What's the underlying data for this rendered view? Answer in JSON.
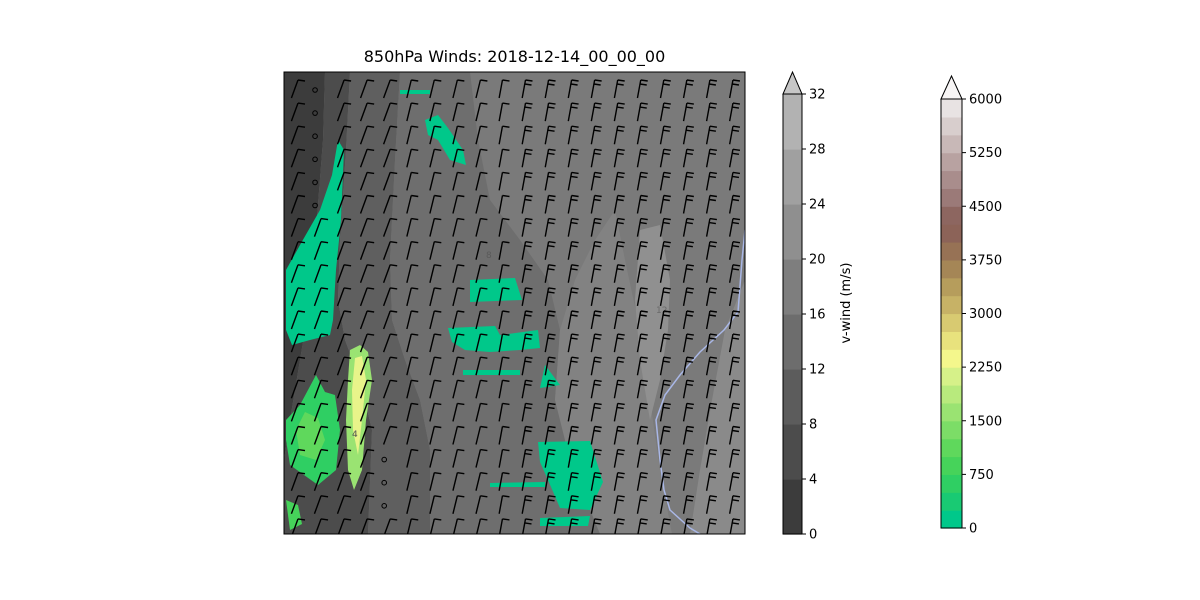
{
  "chart_data": {
    "type": "heatmap",
    "title": "850hPa Winds: 2018-12-14_00_00_00",
    "map": {
      "description_in_pixels": "wind barbs over gray v-wind shading with green terrain overlay",
      "contour_labels": [
        "4",
        "8",
        "12"
      ]
    },
    "vwind_colorbar": {
      "label": "v-wind (m/s)",
      "levels": [
        0,
        4,
        8,
        12,
        16,
        20,
        24,
        28,
        32
      ],
      "tick_labels": [
        "0",
        "4",
        "8",
        "12",
        "16",
        "20",
        "24",
        "28",
        "32"
      ],
      "extend": "max",
      "colors": [
        "#3c3c3c",
        "#4c4c4c",
        "#5c5c5c",
        "#6d6d6d",
        "#7e7e7e",
        "#8f8f8f",
        "#a0a0a0",
        "#b2b2b2",
        "#c6c6c6"
      ]
    },
    "terrain_colorbar": {
      "label": "",
      "levels": [
        0,
        250,
        500,
        750,
        1000,
        1250,
        1500,
        1750,
        2000,
        2250,
        2500,
        2750,
        3000,
        3250,
        3500,
        3750,
        4000,
        4250,
        4500,
        4750,
        5000,
        5250,
        5500,
        5750,
        6000
      ],
      "tick_values": [
        0,
        750,
        1500,
        2250,
        3000,
        3750,
        4500,
        5250,
        6000
      ],
      "tick_labels": [
        "0",
        "750",
        "1500",
        "2250",
        "3000",
        "3750",
        "4500",
        "5250",
        "6000"
      ],
      "extend": "max",
      "colors": [
        "#00c88a",
        "#19ca73",
        "#2fcf63",
        "#46d35a",
        "#5fd85c",
        "#7cdd67",
        "#9ae372",
        "#b8ea7d",
        "#d6f189",
        "#f4f78c",
        "#e8e27d",
        "#d8ca71",
        "#c7b266",
        "#b69d5c",
        "#a58656",
        "#977255",
        "#8c6358",
        "#8d6660",
        "#9b7a78",
        "#a98d8c",
        "#b8a2a1",
        "#c8b8b7",
        "#d8cecd",
        "#e8e3e3",
        "#f7f5f5"
      ]
    }
  }
}
